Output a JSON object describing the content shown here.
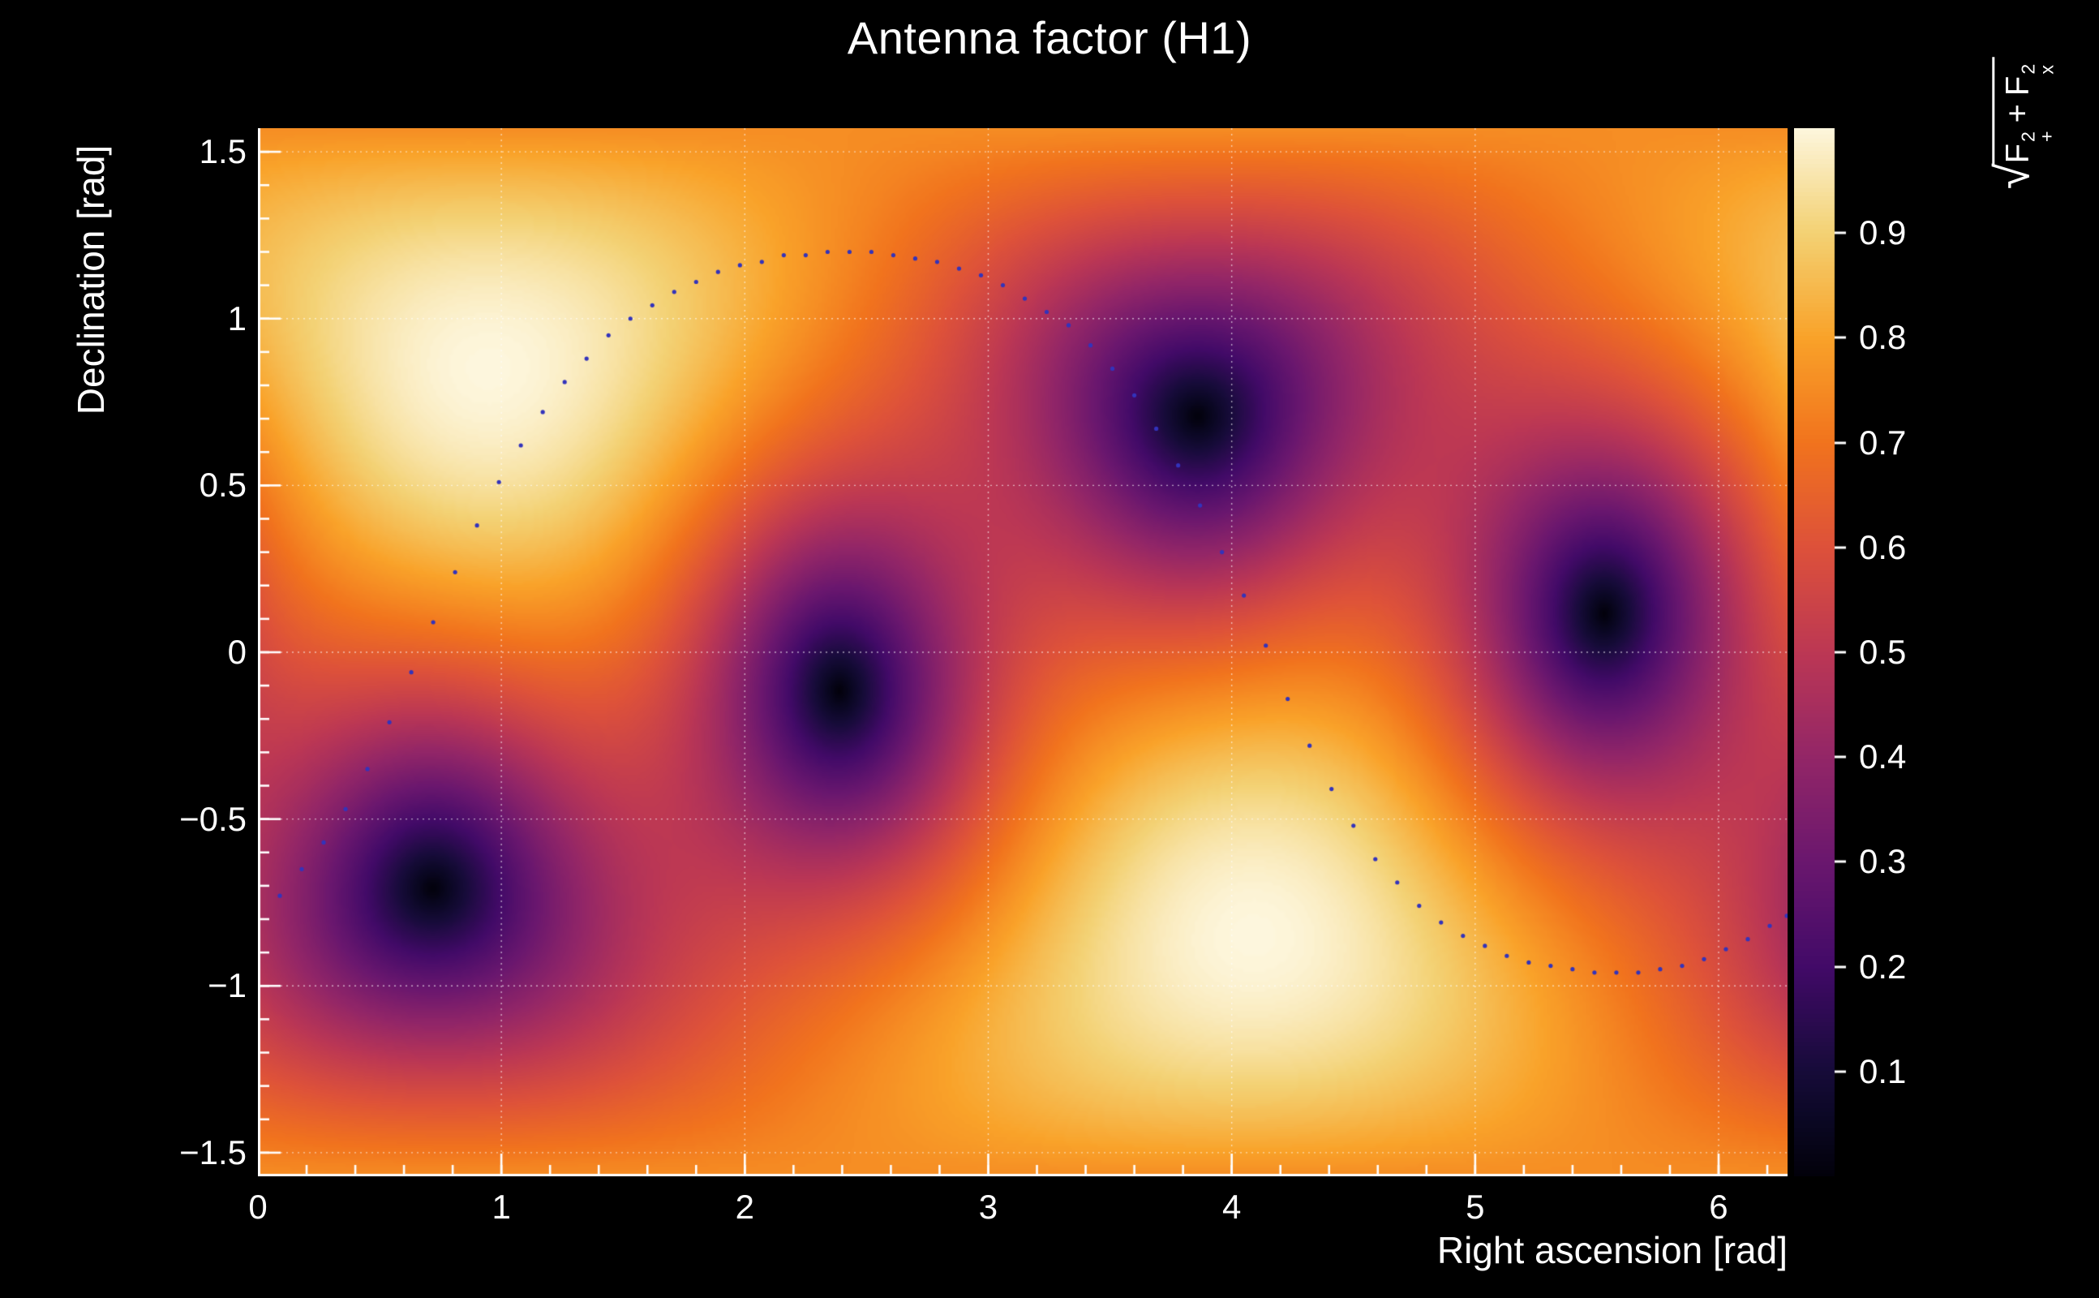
{
  "page": {
    "background": "#000000"
  },
  "chart_data": {
    "type": "heatmap",
    "title": "Antenna factor (H1)",
    "xlabel": "Right ascension [rad]",
    "ylabel": "Declination [rad]",
    "zlabel": "sqrt(F+^2 + Fx^2)",
    "zlabel_parts": {
      "radical": "√",
      "f": "F",
      "exp": "2",
      "plus": "+",
      "cross": "x",
      "sep": "+"
    },
    "x_range": [
      0,
      6.2832
    ],
    "y_range": [
      -1.5708,
      1.5708
    ],
    "z_range": [
      0,
      1
    ],
    "x_ticks": [
      0,
      1,
      2,
      3,
      4,
      5,
      6
    ],
    "x_minor_step": 0.2,
    "y_ticks": [
      -1.5,
      -1,
      -0.5,
      0,
      0.5,
      1,
      1.5
    ],
    "y_minor_step": 0.1,
    "grid": true,
    "colorbar": {
      "min": 0,
      "max": 1,
      "ticks": [
        0.1,
        0.2,
        0.3,
        0.4,
        0.5,
        0.6,
        0.7,
        0.8,
        0.9
      ]
    },
    "colormap_stops": [
      [
        0.0,
        "#02010a"
      ],
      [
        0.05,
        "#0a0722"
      ],
      [
        0.1,
        "#160b39"
      ],
      [
        0.2,
        "#420a68"
      ],
      [
        0.3,
        "#6a176e"
      ],
      [
        0.4,
        "#932667"
      ],
      [
        0.5,
        "#bc3754"
      ],
      [
        0.6,
        "#dd513a"
      ],
      [
        0.7,
        "#f1731d"
      ],
      [
        0.8,
        "#f9a229"
      ],
      [
        0.9,
        "#f3d173"
      ],
      [
        1.0,
        "#fdf6dd"
      ]
    ],
    "antenna_model": {
      "detector": "H1",
      "quantity": "sqrt(Fplus^2 + Fcross^2)",
      "zenith_ra": 0.95,
      "zenith_dec": 0.85,
      "arm_bisector_angle": -0.61
    },
    "maxima": [
      {
        "ra": 0.95,
        "dec": 0.85,
        "value": 1.0
      },
      {
        "ra": 4.09,
        "dec": -0.85,
        "value": 1.0
      }
    ],
    "minima": [
      {
        "ra": 0.73,
        "dec": -0.75,
        "value": 0.0
      },
      {
        "ra": 2.4,
        "dec": -0.1,
        "value": 0.0
      },
      {
        "ra": 3.86,
        "dec": 0.75,
        "value": 0.0
      },
      {
        "ra": 5.55,
        "dec": 0.1,
        "value": 0.0
      }
    ],
    "track": {
      "label": "sky-track-dots",
      "color": "#3333bb",
      "dot_radius": 2.6,
      "points": [
        [
          0.0,
          -0.79
        ],
        [
          0.09,
          -0.73
        ],
        [
          0.18,
          -0.65
        ],
        [
          0.27,
          -0.57
        ],
        [
          0.36,
          -0.47
        ],
        [
          0.45,
          -0.35
        ],
        [
          0.54,
          -0.21
        ],
        [
          0.63,
          -0.06
        ],
        [
          0.72,
          0.09
        ],
        [
          0.81,
          0.24
        ],
        [
          0.9,
          0.38
        ],
        [
          0.99,
          0.51
        ],
        [
          1.08,
          0.62
        ],
        [
          1.17,
          0.72
        ],
        [
          1.26,
          0.81
        ],
        [
          1.35,
          0.88
        ],
        [
          1.44,
          0.95
        ],
        [
          1.53,
          1.0
        ],
        [
          1.62,
          1.04
        ],
        [
          1.71,
          1.08
        ],
        [
          1.8,
          1.11
        ],
        [
          1.89,
          1.14
        ],
        [
          1.98,
          1.16
        ],
        [
          2.07,
          1.17
        ],
        [
          2.16,
          1.19
        ],
        [
          2.25,
          1.19
        ],
        [
          2.34,
          1.2
        ],
        [
          2.43,
          1.2
        ],
        [
          2.52,
          1.2
        ],
        [
          2.61,
          1.19
        ],
        [
          2.7,
          1.18
        ],
        [
          2.79,
          1.17
        ],
        [
          2.88,
          1.15
        ],
        [
          2.97,
          1.13
        ],
        [
          3.06,
          1.1
        ],
        [
          3.15,
          1.06
        ],
        [
          3.24,
          1.02
        ],
        [
          3.33,
          0.98
        ],
        [
          3.42,
          0.92
        ],
        [
          3.51,
          0.85
        ],
        [
          3.6,
          0.77
        ],
        [
          3.69,
          0.67
        ],
        [
          3.78,
          0.56
        ],
        [
          3.87,
          0.44
        ],
        [
          3.96,
          0.3
        ],
        [
          4.05,
          0.17
        ],
        [
          4.14,
          0.02
        ],
        [
          4.23,
          -0.14
        ],
        [
          4.32,
          -0.28
        ],
        [
          4.41,
          -0.41
        ],
        [
          4.5,
          -0.52
        ],
        [
          4.59,
          -0.62
        ],
        [
          4.68,
          -0.69
        ],
        [
          4.77,
          -0.76
        ],
        [
          4.86,
          -0.81
        ],
        [
          4.95,
          -0.85
        ],
        [
          5.04,
          -0.88
        ],
        [
          5.13,
          -0.91
        ],
        [
          5.22,
          -0.93
        ],
        [
          5.31,
          -0.94
        ],
        [
          5.4,
          -0.95
        ],
        [
          5.49,
          -0.96
        ],
        [
          5.58,
          -0.96
        ],
        [
          5.67,
          -0.96
        ],
        [
          5.76,
          -0.95
        ],
        [
          5.85,
          -0.94
        ],
        [
          5.94,
          -0.92
        ],
        [
          6.03,
          -0.89
        ],
        [
          6.12,
          -0.86
        ],
        [
          6.21,
          -0.82
        ],
        [
          6.28,
          -0.79
        ]
      ]
    }
  }
}
